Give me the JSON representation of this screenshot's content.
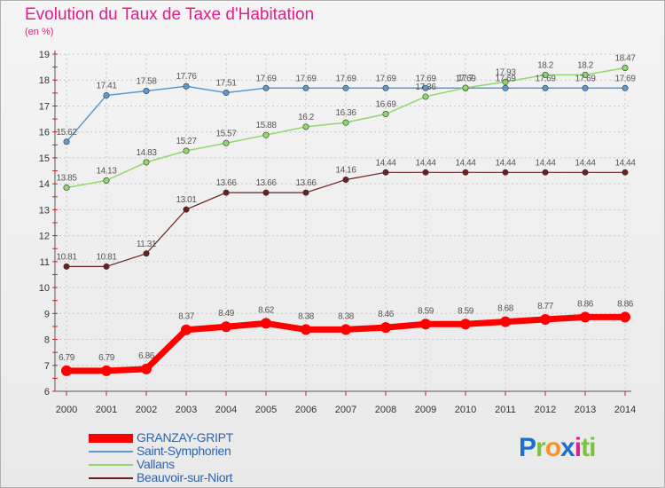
{
  "title": "Evolution du Taux de Taxe d'Habitation",
  "unit_label": "(en %)",
  "logo": {
    "letters": [
      "P",
      "r",
      "o",
      "x",
      "i",
      "t",
      "i"
    ],
    "colors": [
      "#1c6fd1",
      "#7cc242",
      "#f7931e",
      "#1c6fd1",
      "#e0208a",
      "#7cc242",
      "#7cc242"
    ]
  },
  "chart_data": {
    "type": "line",
    "x": [
      2000,
      2001,
      2002,
      2003,
      2004,
      2005,
      2006,
      2007,
      2008,
      2009,
      2010,
      2011,
      2012,
      2013,
      2014
    ],
    "ylim": [
      6,
      19
    ],
    "yticks": [
      6,
      7,
      8,
      9,
      10,
      11,
      12,
      13,
      14,
      15,
      16,
      17,
      18,
      19
    ],
    "grid": true,
    "legend": "bottom-left",
    "series": [
      {
        "name": "GRANZAY-GRIPT",
        "color": "#ff0000",
        "width": 7,
        "values": [
          6.79,
          6.79,
          6.86,
          8.37,
          8.49,
          8.62,
          8.38,
          8.38,
          8.46,
          8.59,
          8.59,
          8.68,
          8.77,
          8.86,
          8.86
        ]
      },
      {
        "name": "Saint-Symphorien",
        "color": "#5a9bd5",
        "width": 1.5,
        "values": [
          15.62,
          17.41,
          17.58,
          17.76,
          17.51,
          17.69,
          17.69,
          17.69,
          17.69,
          17.69,
          17.69,
          17.69,
          17.69,
          17.69,
          17.69
        ]
      },
      {
        "name": "Vallans",
        "color": "#8fd86a",
        "width": 1.5,
        "values": [
          13.85,
          14.13,
          14.83,
          15.27,
          15.57,
          15.88,
          16.2,
          16.36,
          16.69,
          17.36,
          17.7,
          17.93,
          18.2,
          18.2,
          18.47
        ]
      },
      {
        "name": "Beauvoir-sur-Niort",
        "color": "#6b1f1f",
        "width": 1.2,
        "values": [
          10.81,
          10.81,
          11.31,
          13.01,
          13.66,
          13.66,
          13.66,
          14.16,
          14.44,
          14.44,
          14.44,
          14.44,
          14.44,
          14.44,
          14.44
        ]
      }
    ]
  }
}
